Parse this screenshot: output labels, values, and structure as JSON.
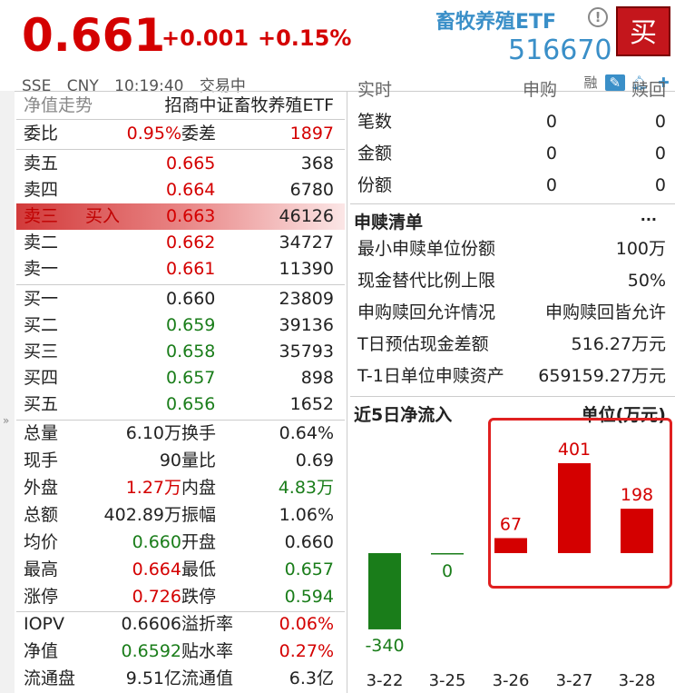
{
  "quote": {
    "price": "0.661",
    "change": "+0.001",
    "change_pct": "+0.15%"
  },
  "security": {
    "name": "畜牧养殖ETF",
    "code": "516670",
    "buy_label": "买",
    "info_icon": "info-icon"
  },
  "status": {
    "exchange": "SSE",
    "currency": "CNY",
    "time": "10:19:40",
    "state": "交易中"
  },
  "toolbar": {
    "margin_label": "融",
    "icons": [
      "edit-icon",
      "bell-icon",
      "plus-icon"
    ]
  },
  "left": {
    "tab_label": "净值走势",
    "full_name": "招商中证畜牧养殖ETF",
    "committee": {
      "label1": "委比",
      "value1": "0.95%",
      "label2": "委差",
      "value2": "1897"
    },
    "asks": [
      {
        "label": "卖五",
        "price": "0.665",
        "vol": "368"
      },
      {
        "label": "卖四",
        "price": "0.664",
        "vol": "6780"
      },
      {
        "label": "卖三",
        "price": "0.663",
        "vol": "46126",
        "mark": "买入"
      },
      {
        "label": "卖二",
        "price": "0.662",
        "vol": "34727"
      },
      {
        "label": "卖一",
        "price": "0.661",
        "vol": "11390"
      }
    ],
    "bids": [
      {
        "label": "买一",
        "price": "0.660",
        "vol": "23809"
      },
      {
        "label": "买二",
        "price": "0.659",
        "vol": "39136"
      },
      {
        "label": "买三",
        "price": "0.658",
        "vol": "35793"
      },
      {
        "label": "买四",
        "price": "0.657",
        "vol": "898"
      },
      {
        "label": "买五",
        "price": "0.656",
        "vol": "1652"
      }
    ],
    "stats": [
      {
        "l1": "总量",
        "v1": "6.10万",
        "l2": "换手",
        "v2": "0.64%"
      },
      {
        "l1": "现手",
        "v1": "90",
        "l2": "量比",
        "v2": "0.69"
      },
      {
        "l1": "外盘",
        "v1": "1.27万",
        "l2": "内盘",
        "v2": "4.83万"
      },
      {
        "l1": "总额",
        "v1": "402.89万",
        "l2": "振幅",
        "v2": "1.06%"
      },
      {
        "l1": "均价",
        "v1": "0.660",
        "l2": "开盘",
        "v2": "0.660"
      },
      {
        "l1": "最高",
        "v1": "0.664",
        "l2": "最低",
        "v2": "0.657"
      },
      {
        "l1": "涨停",
        "v1": "0.726",
        "l2": "跌停",
        "v2": "0.594"
      }
    ],
    "nav": [
      {
        "l1": "IOPV",
        "v1": "0.6606",
        "l2": "溢折率",
        "v2": "0.06%"
      },
      {
        "l1": "净值",
        "v1": "0.6592",
        "l2": "贴水率",
        "v2": "0.27%"
      },
      {
        "l1": "流通盘",
        "v1": "9.51亿",
        "l2": "流通值",
        "v2": "6.3亿"
      }
    ]
  },
  "right": {
    "top_partial": {
      "k": "实时",
      "c1": "申购",
      "c2": "赎回"
    },
    "flows": [
      {
        "k": "笔数",
        "v1": "0",
        "v2": "0"
      },
      {
        "k": "金额",
        "v1": "0",
        "v2": "0"
      },
      {
        "k": "份额",
        "v1": "0",
        "v2": "0"
      }
    ],
    "list_title": "申赎清单",
    "more": "···",
    "list": [
      {
        "k": "最小申赎单位份额",
        "v": "100万"
      },
      {
        "k": "现金替代比例上限",
        "v": "50%"
      },
      {
        "k": "申购赎回允许情况",
        "v": "申购赎回皆允许"
      },
      {
        "k": "T日预估现金差额",
        "v": "516.27万元"
      },
      {
        "k": "T-1日单位申赎资产",
        "v": "659159.27万元"
      }
    ],
    "chart_title": "近5日净流入",
    "chart_unit": "单位(万元)"
  },
  "chart_data": {
    "type": "bar",
    "title": "近5日净流入",
    "ylabel": "单位(万元)",
    "categories": [
      "3-22",
      "3-25",
      "3-26",
      "3-27",
      "3-28"
    ],
    "values": [
      -340,
      0,
      67,
      401,
      198
    ],
    "labels": [
      "-340",
      "0",
      "67",
      "401",
      "198"
    ],
    "colors": {
      "positive": "#d40000",
      "negative": "#1a7d1a",
      "zero": "#1a7d1a"
    },
    "highlight": [
      "3-26",
      "3-27",
      "3-28"
    ]
  }
}
